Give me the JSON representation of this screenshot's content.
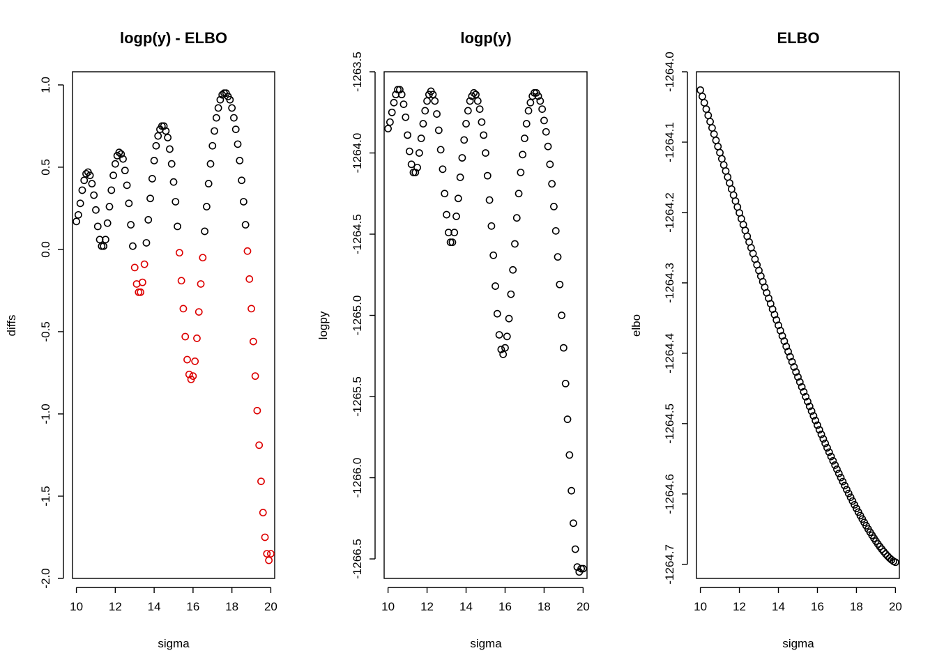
{
  "chart_data": [
    {
      "type": "scatter",
      "title": "logp(y) - ELBO",
      "xlabel": "sigma",
      "ylabel": "diffs",
      "xlim": [
        9.8,
        20.2
      ],
      "ylim": [
        -2.0,
        1.08
      ],
      "xticks": [
        "10",
        "12",
        "14",
        "16",
        "18",
        "20"
      ],
      "yticks": [
        "-2.0",
        "-1.5",
        "-1.0",
        "-0.5",
        "0.0",
        "0.5",
        "1.0"
      ],
      "marker": "open-circle",
      "colors": {
        "positive": "#000000",
        "negative": "#dd0000"
      },
      "x": [
        10.0,
        10.1,
        10.2,
        10.3,
        10.4,
        10.5,
        10.6,
        10.7,
        10.8,
        10.9,
        11.0,
        11.1,
        11.2,
        11.3,
        11.4,
        11.5,
        11.6,
        11.7,
        11.8,
        11.9,
        12.0,
        12.1,
        12.2,
        12.3,
        12.4,
        12.5,
        12.6,
        12.7,
        12.8,
        12.9,
        13.0,
        13.1,
        13.2,
        13.3,
        13.4,
        13.5,
        13.6,
        13.7,
        13.8,
        13.9,
        14.0,
        14.1,
        14.2,
        14.3,
        14.4,
        14.5,
        14.6,
        14.7,
        14.8,
        14.9,
        15.0,
        15.1,
        15.2,
        15.3,
        15.4,
        15.5,
        15.6,
        15.7,
        15.8,
        15.9,
        16.0,
        16.1,
        16.2,
        16.3,
        16.4,
        16.5,
        16.6,
        16.7,
        16.8,
        16.9,
        17.0,
        17.1,
        17.2,
        17.3,
        17.4,
        17.5,
        17.6,
        17.7,
        17.8,
        17.9,
        18.0,
        18.1,
        18.2,
        18.3,
        18.4,
        18.5,
        18.6,
        18.7,
        18.8,
        18.9,
        19.0,
        19.1,
        19.2,
        19.3,
        19.4,
        19.5,
        19.6,
        19.7,
        19.8,
        19.9,
        20.0
      ],
      "y": [
        0.17,
        0.21,
        0.28,
        0.36,
        0.42,
        0.46,
        0.47,
        0.45,
        0.4,
        0.33,
        0.24,
        0.14,
        0.06,
        0.02,
        0.02,
        0.06,
        0.16,
        0.26,
        0.36,
        0.45,
        0.52,
        0.57,
        0.59,
        0.58,
        0.55,
        0.48,
        0.39,
        0.28,
        0.15,
        0.02,
        -0.11,
        -0.21,
        -0.26,
        -0.26,
        -0.2,
        -0.09,
        0.04,
        0.18,
        0.31,
        0.43,
        0.54,
        0.63,
        0.69,
        0.73,
        0.75,
        0.75,
        0.72,
        0.68,
        0.61,
        0.52,
        0.41,
        0.29,
        0.14,
        -0.02,
        -0.19,
        -0.36,
        -0.53,
        -0.67,
        -0.76,
        -0.79,
        -0.77,
        -0.68,
        -0.54,
        -0.38,
        -0.21,
        -0.05,
        0.11,
        0.26,
        0.4,
        0.52,
        0.63,
        0.72,
        0.8,
        0.86,
        0.91,
        0.94,
        0.95,
        0.95,
        0.93,
        0.91,
        0.86,
        0.8,
        0.73,
        0.64,
        0.54,
        0.42,
        0.29,
        0.15,
        -0.01,
        -0.18,
        -0.36,
        -0.56,
        -0.77,
        -0.98,
        -1.19,
        -1.41,
        -1.6,
        -1.75,
        -1.85,
        -1.89,
        -1.85
      ]
    },
    {
      "type": "scatter",
      "title": "logp(y)",
      "xlabel": "sigma",
      "ylabel": "logpy",
      "xlim": [
        9.8,
        20.2
      ],
      "ylim": [
        -1266.62,
        -1263.5
      ],
      "xticks": [
        "10",
        "12",
        "14",
        "16",
        "18",
        "20"
      ],
      "yticks": [
        "-1263.5",
        "-1264.0",
        "-1264.5",
        "-1265.0",
        "-1265.5",
        "-1266.0",
        "-1266.5"
      ],
      "marker": "open-circle",
      "x": [
        10.0,
        10.1,
        10.2,
        10.3,
        10.4,
        10.5,
        10.6,
        10.7,
        10.8,
        10.9,
        11.0,
        11.1,
        11.2,
        11.3,
        11.4,
        11.5,
        11.6,
        11.7,
        11.8,
        11.9,
        12.0,
        12.1,
        12.2,
        12.3,
        12.4,
        12.5,
        12.6,
        12.7,
        12.8,
        12.9,
        13.0,
        13.1,
        13.2,
        13.3,
        13.4,
        13.5,
        13.6,
        13.7,
        13.8,
        13.9,
        14.0,
        14.1,
        14.2,
        14.3,
        14.4,
        14.5,
        14.6,
        14.7,
        14.8,
        14.9,
        15.0,
        15.1,
        15.2,
        15.3,
        15.4,
        15.5,
        15.6,
        15.7,
        15.8,
        15.9,
        16.0,
        16.1,
        16.2,
        16.3,
        16.4,
        16.5,
        16.6,
        16.7,
        16.8,
        16.9,
        17.0,
        17.1,
        17.2,
        17.3,
        17.4,
        17.5,
        17.6,
        17.7,
        17.8,
        17.9,
        18.0,
        18.1,
        18.2,
        18.3,
        18.4,
        18.5,
        18.6,
        18.7,
        18.8,
        18.9,
        19.0,
        19.1,
        19.2,
        19.3,
        19.4,
        19.5,
        19.6,
        19.7,
        19.8,
        19.9,
        20.0
      ],
      "y": [
        -1263.85,
        -1263.81,
        -1263.75,
        -1263.69,
        -1263.64,
        -1263.61,
        -1263.61,
        -1263.64,
        -1263.7,
        -1263.78,
        -1263.89,
        -1263.99,
        -1264.07,
        -1264.12,
        -1264.12,
        -1264.09,
        -1264.0,
        -1263.91,
        -1263.82,
        -1263.74,
        -1263.68,
        -1263.64,
        -1263.62,
        -1263.64,
        -1263.68,
        -1263.76,
        -1263.86,
        -1263.98,
        -1264.1,
        -1264.25,
        -1264.38,
        -1264.49,
        -1264.55,
        -1264.55,
        -1264.49,
        -1264.39,
        -1264.28,
        -1264.15,
        -1264.03,
        -1263.92,
        -1263.82,
        -1263.74,
        -1263.68,
        -1263.65,
        -1263.63,
        -1263.64,
        -1263.68,
        -1263.73,
        -1263.81,
        -1263.89,
        -1264.0,
        -1264.14,
        -1264.29,
        -1264.45,
        -1264.63,
        -1264.82,
        -1264.99,
        -1265.12,
        -1265.21,
        -1265.24,
        -1265.2,
        -1265.13,
        -1265.02,
        -1264.87,
        -1264.72,
        -1264.56,
        -1264.4,
        -1264.25,
        -1264.12,
        -1264.01,
        -1263.91,
        -1263.82,
        -1263.74,
        -1263.69,
        -1263.65,
        -1263.63,
        -1263.63,
        -1263.65,
        -1263.68,
        -1263.73,
        -1263.8,
        -1263.87,
        -1263.96,
        -1264.07,
        -1264.19,
        -1264.33,
        -1264.48,
        -1264.64,
        -1264.81,
        -1265.0,
        -1265.2,
        -1265.42,
        -1265.64,
        -1265.86,
        -1266.08,
        -1266.28,
        -1266.44,
        -1266.55,
        -1266.58,
        -1266.56,
        -1266.56
      ]
    },
    {
      "type": "scatter",
      "title": "ELBO",
      "xlabel": "sigma",
      "ylabel": "elbo",
      "xlim": [
        9.8,
        20.2
      ],
      "ylim": [
        -1264.72,
        -1264.0
      ],
      "xticks": [
        "10",
        "12",
        "14",
        "16",
        "18",
        "20"
      ],
      "yticks": [
        "-1264.0",
        "-1264.1",
        "-1264.2",
        "-1264.3",
        "-1264.4",
        "-1264.5",
        "-1264.6",
        "-1264.7"
      ],
      "marker": "open-circle",
      "x_range": [
        10.0,
        20.0
      ],
      "x_step": 0.1,
      "y_first": -1264.026,
      "y_last": -1264.697,
      "curve": "smooth convex decrease"
    }
  ]
}
